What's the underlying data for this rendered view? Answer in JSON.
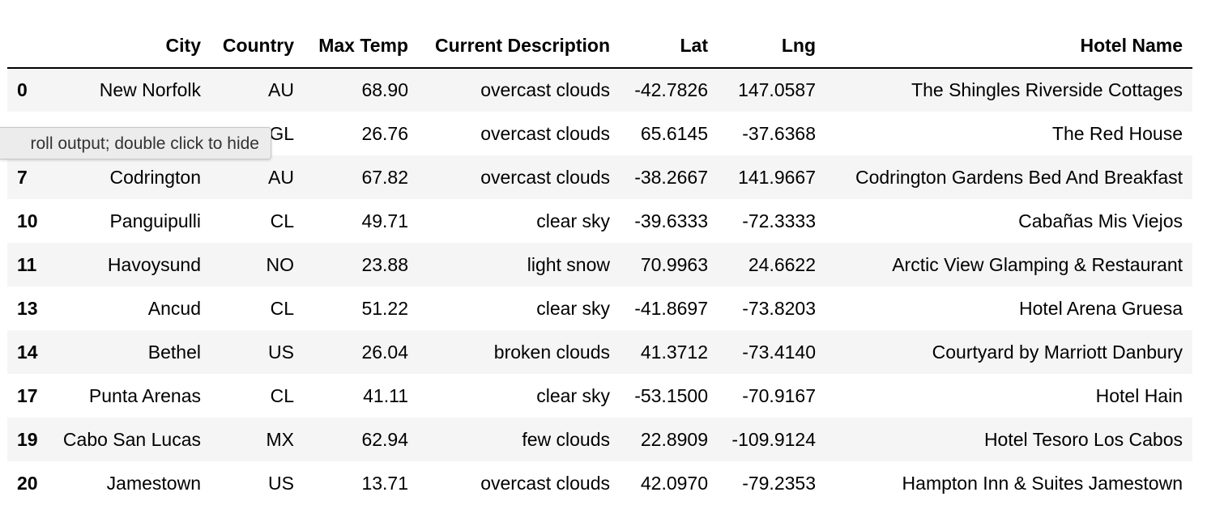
{
  "table": {
    "headers": {
      "index": "",
      "city": "City",
      "country": "Country",
      "max_temp": "Max Temp",
      "description": "Current Description",
      "lat": "Lat",
      "lng": "Lng",
      "hotel": "Hotel Name"
    },
    "rows": [
      {
        "index": "0",
        "city": "New Norfolk",
        "country": "AU",
        "max_temp": "68.90",
        "description": "overcast clouds",
        "lat": "-42.7826",
        "lng": "147.0587",
        "hotel": "The Shingles Riverside Cottages"
      },
      {
        "index": "",
        "city": "",
        "country": "GL",
        "max_temp": "26.76",
        "description": "overcast clouds",
        "lat": "65.6145",
        "lng": "-37.6368",
        "hotel": "The Red House"
      },
      {
        "index": "7",
        "city": "Codrington",
        "country": "AU",
        "max_temp": "67.82",
        "description": "overcast clouds",
        "lat": "-38.2667",
        "lng": "141.9667",
        "hotel": "Codrington Gardens Bed And Breakfast"
      },
      {
        "index": "10",
        "city": "Panguipulli",
        "country": "CL",
        "max_temp": "49.71",
        "description": "clear sky",
        "lat": "-39.6333",
        "lng": "-72.3333",
        "hotel": "Cabañas Mis Viejos"
      },
      {
        "index": "11",
        "city": "Havoysund",
        "country": "NO",
        "max_temp": "23.88",
        "description": "light snow",
        "lat": "70.9963",
        "lng": "24.6622",
        "hotel": "Arctic View Glamping & Restaurant"
      },
      {
        "index": "13",
        "city": "Ancud",
        "country": "CL",
        "max_temp": "51.22",
        "description": "clear sky",
        "lat": "-41.8697",
        "lng": "-73.8203",
        "hotel": "Hotel Arena Gruesa"
      },
      {
        "index": "14",
        "city": "Bethel",
        "country": "US",
        "max_temp": "26.04",
        "description": "broken clouds",
        "lat": "41.3712",
        "lng": "-73.4140",
        "hotel": "Courtyard by Marriott Danbury"
      },
      {
        "index": "17",
        "city": "Punta Arenas",
        "country": "CL",
        "max_temp": "41.11",
        "description": "clear sky",
        "lat": "-53.1500",
        "lng": "-70.9167",
        "hotel": "Hotel Hain"
      },
      {
        "index": "19",
        "city": "Cabo San Lucas",
        "country": "MX",
        "max_temp": "62.94",
        "description": "few clouds",
        "lat": "22.8909",
        "lng": "-109.9124",
        "hotel": "Hotel Tesoro Los Cabos"
      },
      {
        "index": "20",
        "city": "Jamestown",
        "country": "US",
        "max_temp": "13.71",
        "description": "overcast clouds",
        "lat": "42.0970",
        "lng": "-79.2353",
        "hotel": "Hampton Inn & Suites Jamestown"
      }
    ]
  },
  "tooltip": {
    "text": "roll output; double click to hide"
  },
  "colors": {
    "row_stripe": "#f5f5f5",
    "tooltip_bg": "#ececec"
  }
}
